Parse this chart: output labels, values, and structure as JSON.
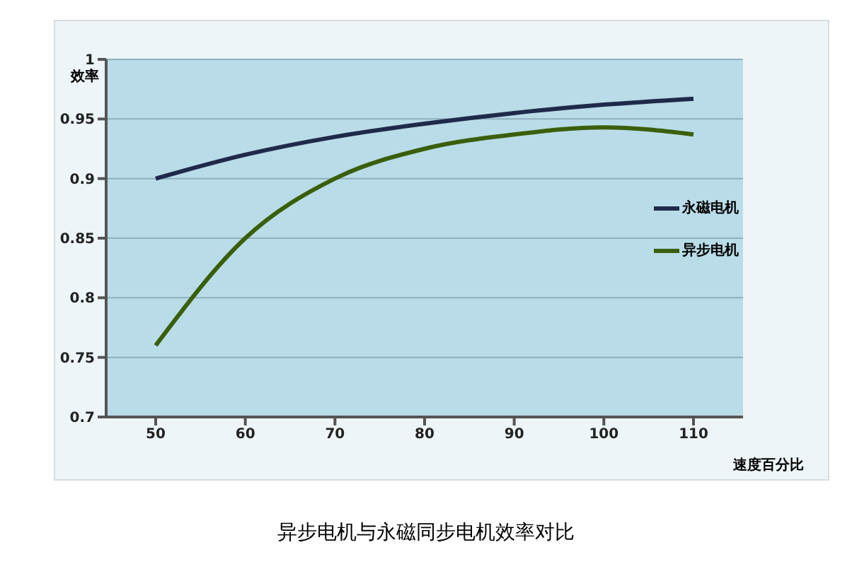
{
  "chart_data": {
    "type": "line",
    "title": "异步电机与永磁同步电机效率对比",
    "xlabel": "速度百分比",
    "ylabel": "效率",
    "categories": [
      "50",
      "60",
      "70",
      "80",
      "90",
      "100",
      "110"
    ],
    "series": [
      {
        "name": "永磁电机",
        "color": "#1f2a4a",
        "values": [
          0.9,
          0.92,
          0.935,
          0.946,
          0.955,
          0.962,
          0.967
        ]
      },
      {
        "name": "异步电机",
        "color": "#3a5f0b",
        "values": [
          0.76,
          0.85,
          0.9,
          0.925,
          0.937,
          0.943,
          0.937
        ]
      }
    ],
    "ylim": [
      0.7,
      1
    ],
    "yticks": [
      0.7,
      0.75,
      0.8,
      0.85,
      0.9,
      0.95,
      1
    ],
    "grid": "y",
    "legend": "right",
    "marker": "none",
    "line_style": "solid"
  }
}
